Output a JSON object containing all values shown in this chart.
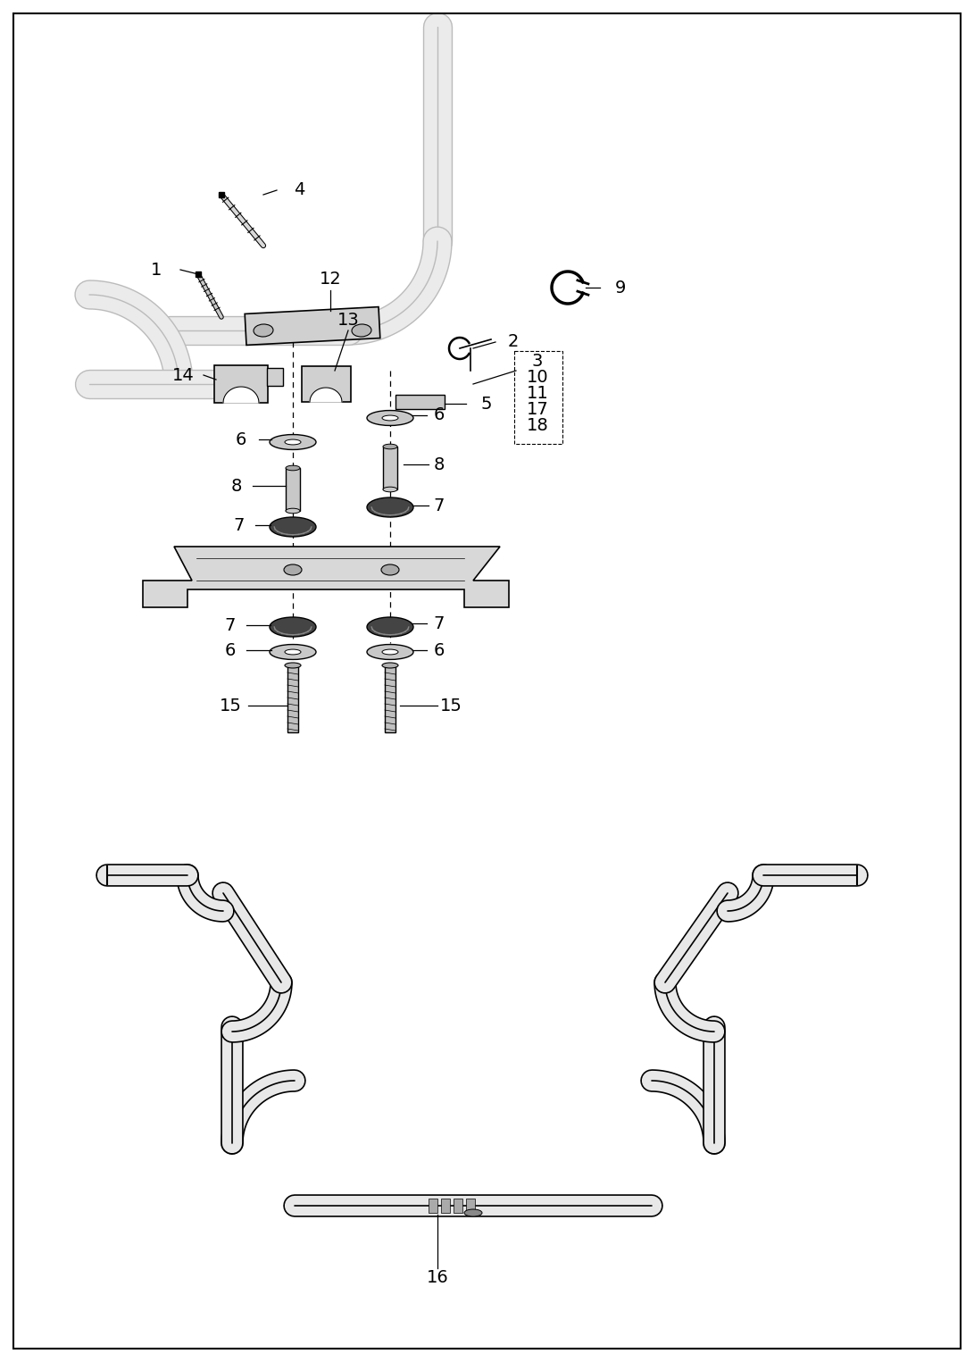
{
  "background_color": "#ffffff",
  "border_color": "#000000",
  "figsize": [
    10.91,
    15.25
  ],
  "dpi": 100,
  "tube_color": "#e8e8e8",
  "part_color": "#d0d0d0",
  "dark_color": "#555555",
  "black": "#000000"
}
